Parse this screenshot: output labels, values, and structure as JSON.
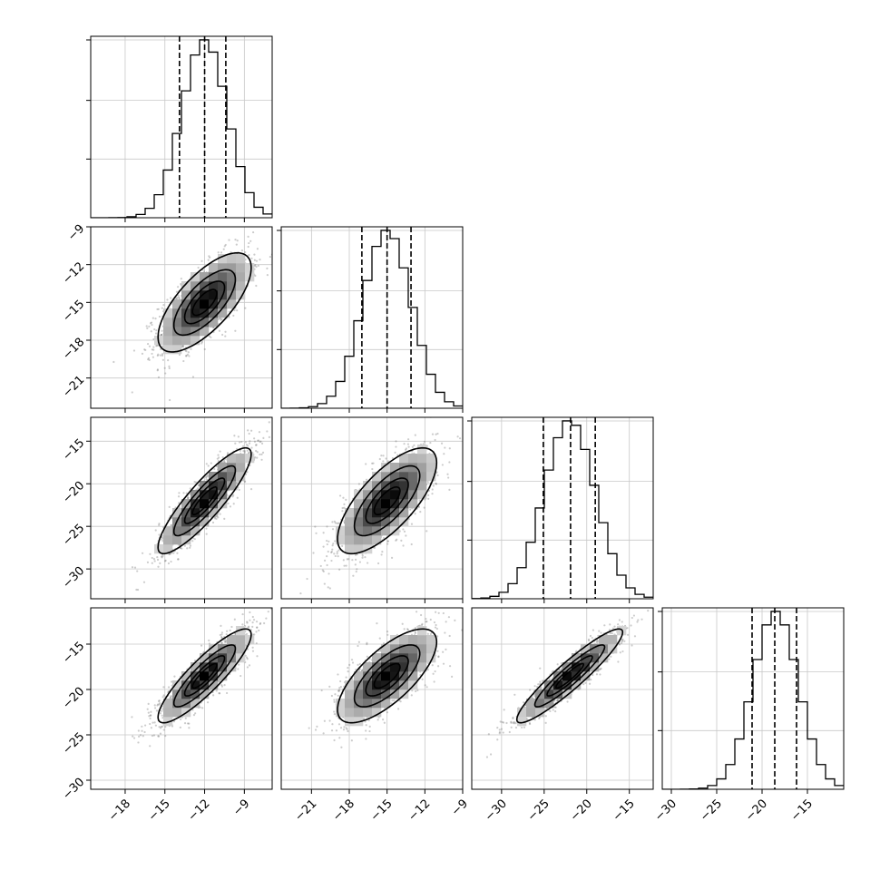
{
  "chart_data": {
    "type": "corner",
    "title": "",
    "parameters": [
      {
        "ticks": [
          -18,
          -15,
          -12,
          -9
        ],
        "tick_labels": [
          "−18",
          "−15",
          "−12",
          "−9"
        ],
        "range": [
          -20.6,
          -6.9
        ],
        "mean": -12.0,
        "sigma": 1.7,
        "q16": -13.9,
        "q50": -12.0,
        "q84": -10.4
      },
      {
        "ticks": [
          -21,
          -18,
          -15,
          -12,
          -9
        ],
        "tick_labels": [
          "−21",
          "−18",
          "−15",
          "−12",
          "−9"
        ],
        "range": [
          -23.4,
          -9.0
        ],
        "mean": -15.0,
        "sigma": 1.9,
        "q16": -17.0,
        "q50": -15.0,
        "q84": -13.1
      },
      {
        "ticks": [
          -30,
          -25,
          -20,
          -15
        ],
        "tick_labels": [
          "−30",
          "−25",
          "−20",
          "−15"
        ],
        "range": [
          -33.5,
          -12.2
        ],
        "mean": -22.0,
        "sigma": 3.0,
        "q16": -25.1,
        "q50": -21.9,
        "q84": -19.0
      },
      {
        "ticks": [
          -30,
          -25,
          -20,
          -15
        ],
        "tick_labels": [
          "−30",
          "−25",
          "−20",
          "−15"
        ],
        "range": [
          -31.0,
          -11.0
        ],
        "mean": -18.5,
        "sigma": 2.5,
        "q16": -21.1,
        "q50": -18.6,
        "q84": -16.2
      }
    ],
    "correlations": [
      [
        1.0,
        0.7,
        0.88,
        0.88
      ],
      [
        0.7,
        1.0,
        0.72,
        0.72
      ],
      [
        0.88,
        0.72,
        1.0,
        0.93
      ],
      [
        0.88,
        0.72,
        0.93,
        1.0
      ]
    ],
    "histogram_bins": 20,
    "contour_levels_sigma": [
      0.5,
      1.0,
      1.5,
      2.0
    ],
    "grid": true,
    "quantile_lines": "dashed"
  }
}
